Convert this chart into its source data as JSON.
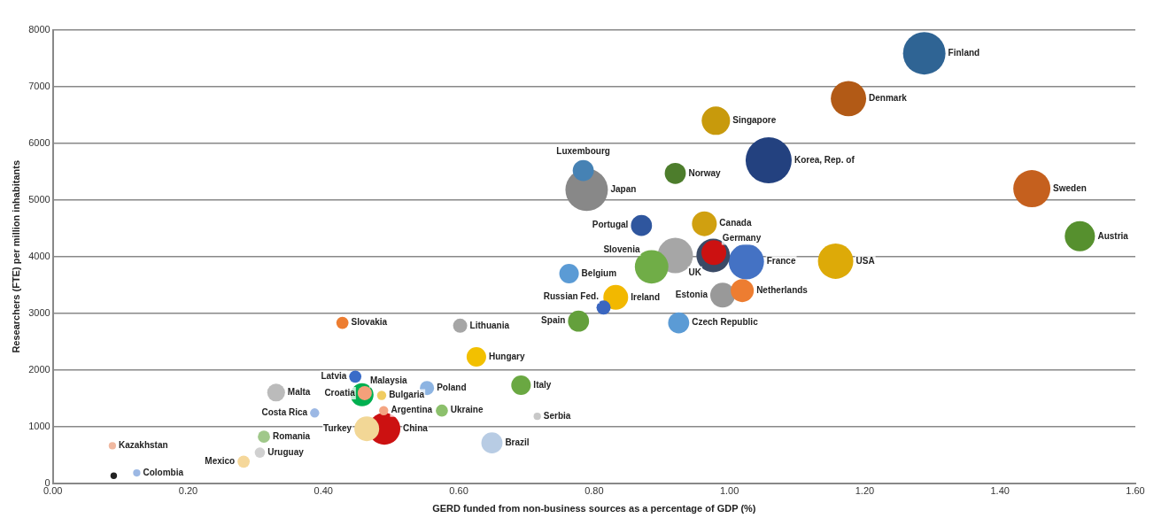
{
  "chart_data": {
    "type": "bubble",
    "xlabel": "GERD funded from non-business sources as a percentage of GDP (%)",
    "ylabel": "Researchers (FTE) per million inhabitants",
    "xlim": [
      0,
      1.6
    ],
    "xticks": [
      {
        "value": 0,
        "label": "0.00"
      },
      {
        "value": 0.2,
        "label": "0.20"
      },
      {
        "value": 0.4,
        "label": "0.40"
      },
      {
        "value": 0.6,
        "label": "0.60"
      },
      {
        "value": 0.8,
        "label": "0.80"
      },
      {
        "value": 1.0,
        "label": "1.00"
      },
      {
        "value": 1.2,
        "label": "1.20"
      },
      {
        "value": 1.4,
        "label": "1.40"
      },
      {
        "value": 1.6,
        "label": "1.60"
      }
    ],
    "ylim": [
      0,
      8000
    ],
    "yticks": [
      0,
      1000,
      2000,
      3000,
      4000,
      5000,
      6000,
      7000,
      8000
    ],
    "grid": "y",
    "legend": false,
    "series": [
      {
        "name": "Finland",
        "color": "#2f6494",
        "x": [
          1.288
        ],
        "values": [
          7590
        ],
        "sizes": [
          0.85
        ]
      },
      {
        "name": "Denmark",
        "color": "#b25a16",
        "x": [
          1.176
        ],
        "values": [
          6790
        ],
        "sizes": [
          0.59
        ]
      },
      {
        "name": "Singapore",
        "color": "#c89a0c",
        "x": [
          0.98
        ],
        "values": [
          6400
        ],
        "sizes": [
          0.38
        ]
      },
      {
        "name": "Korea, Rep. of",
        "color": "#23417f",
        "x": [
          1.058
        ],
        "values": [
          5700
        ],
        "sizes": [
          1
        ]
      },
      {
        "name": "Sweden",
        "color": "#c5601e",
        "x": [
          1.447
        ],
        "values": [
          5200
        ],
        "sizes": [
          0.65
        ]
      },
      {
        "name": "Austria",
        "color": "#56902e",
        "x": [
          1.518
        ],
        "values": [
          4360
        ],
        "sizes": [
          0.43
        ]
      },
      {
        "name": "USA",
        "color": "#ddaa08",
        "x": [
          1.157
        ],
        "values": [
          3920
        ],
        "sizes": [
          0.59
        ]
      },
      {
        "name": "Luxembourg",
        "color": "#4682b4",
        "x": [
          0.784
        ],
        "values": [
          5520
        ],
        "sizes": [
          0.21
        ]
      },
      {
        "name": "Japan",
        "color": "#888888",
        "x": [
          0.789
        ],
        "values": [
          5180
        ],
        "sizes": [
          0.85
        ]
      },
      {
        "name": "Norway",
        "color": "#4d7d2c",
        "x": [
          0.92
        ],
        "values": [
          5470
        ],
        "sizes": [
          0.21
        ]
      },
      {
        "name": "Canada",
        "color": "#d0a010",
        "x": [
          0.963
        ],
        "values": [
          4580
        ],
        "sizes": [
          0.29
        ]
      },
      {
        "name": "Portugal",
        "color": "#2f569e",
        "x": [
          0.87
        ],
        "values": [
          4550
        ],
        "sizes": [
          0.21
        ]
      },
      {
        "color": "#a6a6a6",
        "x": [
          0.92
        ],
        "values": [
          4020
        ],
        "sizes": [
          0.59
        ]
      },
      {
        "name": "UK",
        "color": "#3a4a66",
        "x": [
          0.976
        ],
        "values": [
          4020
        ],
        "sizes": [
          0.53
        ]
      },
      {
        "name": "Germany",
        "color": "#cc1111",
        "x": [
          0.977
        ],
        "values": [
          4070
        ],
        "sizes": [
          0.29
        ]
      },
      {
        "name": "France",
        "color": "#4472c4",
        "x": [
          1.025
        ],
        "values": [
          3910
        ],
        "sizes": [
          0.59
        ]
      },
      {
        "name": "Slovenia",
        "color": "#70ad47",
        "x": [
          0.885
        ],
        "values": [
          3820
        ],
        "sizes": [
          0.53
        ]
      },
      {
        "name": "Netherlands",
        "color": "#ed7d31",
        "x": [
          1.019
        ],
        "values": [
          3400
        ],
        "sizes": [
          0.25
        ]
      },
      {
        "name": "Estonia",
        "color": "#999999",
        "x": [
          0.99
        ],
        "values": [
          3320
        ],
        "sizes": [
          0.29
        ]
      },
      {
        "name": "Belgium",
        "color": "#5b9bd5",
        "x": [
          0.763
        ],
        "values": [
          3700
        ],
        "sizes": [
          0.18
        ]
      },
      {
        "name": "Ireland",
        "color": "#f2b800",
        "x": [
          0.832
        ],
        "values": [
          3280
        ],
        "sizes": [
          0.29
        ]
      },
      {
        "name": "Russian Fed.",
        "color": "#3a66c0",
        "x": [
          0.814
        ],
        "values": [
          3100
        ],
        "sizes": [
          0.095
        ]
      },
      {
        "name": "Spain",
        "color": "#64a03c",
        "x": [
          0.777
        ],
        "values": [
          2860
        ],
        "sizes": [
          0.21
        ]
      },
      {
        "name": "Czech Republic",
        "color": "#5b9bd5",
        "x": [
          0.925
        ],
        "values": [
          2830
        ],
        "sizes": [
          0.21
        ]
      },
      {
        "name": "Slovakia",
        "color": "#ed7d31",
        "x": [
          0.428
        ],
        "values": [
          2830
        ],
        "sizes": [
          0.07
        ]
      },
      {
        "name": "Lithuania",
        "color": "#a6a6a6",
        "x": [
          0.602
        ],
        "values": [
          2780
        ],
        "sizes": [
          0.095
        ]
      },
      {
        "name": "Hungary",
        "color": "#f2c000",
        "x": [
          0.626
        ],
        "values": [
          2230
        ],
        "sizes": [
          0.18
        ]
      },
      {
        "name": "Latvia",
        "color": "#3a6cc8",
        "x": [
          0.447
        ],
        "values": [
          1880
        ],
        "sizes": [
          0.07
        ]
      },
      {
        "name": "Malaysia",
        "color": "#00b050",
        "x": [
          0.457
        ],
        "values": [
          1560
        ],
        "sizes": [
          0.25
        ]
      },
      {
        "name": "Croatia",
        "color": "#f4a07a",
        "x": [
          0.461
        ],
        "values": [
          1590
        ],
        "sizes": [
          0.095
        ]
      },
      {
        "name": "Bulgaria",
        "color": "#f0cc60",
        "x": [
          0.486
        ],
        "values": [
          1550
        ],
        "sizes": [
          0.04
        ]
      },
      {
        "name": "Poland",
        "color": "#8db4e2",
        "x": [
          0.553
        ],
        "values": [
          1680
        ],
        "sizes": [
          0.095
        ]
      },
      {
        "name": "Italy",
        "color": "#6aa842",
        "x": [
          0.692
        ],
        "values": [
          1730
        ],
        "sizes": [
          0.18
        ]
      },
      {
        "name": "Malta",
        "color": "#bbbbbb",
        "x": [
          0.33
        ],
        "values": [
          1600
        ],
        "sizes": [
          0.15
        ]
      },
      {
        "name": "Costa Rica",
        "color": "#9cb8e4",
        "x": [
          0.387
        ],
        "values": [
          1240
        ],
        "sizes": [
          0.04
        ]
      },
      {
        "name": "Argentina",
        "color": "#f4a582",
        "x": [
          0.489
        ],
        "values": [
          1280
        ],
        "sizes": [
          0.04
        ]
      },
      {
        "name": "Ukraine",
        "color": "#8cc06c",
        "x": [
          0.575
        ],
        "values": [
          1280
        ],
        "sizes": [
          0.07
        ]
      },
      {
        "name": "Serbia",
        "color": "#c8c8c8",
        "x": [
          0.716
        ],
        "values": [
          1180
        ],
        "sizes": [
          0.025
        ]
      },
      {
        "name": "China",
        "color": "#cc1111",
        "x": [
          0.49
        ],
        "values": [
          960
        ],
        "sizes": [
          0.48
        ]
      },
      {
        "name": "Turkey",
        "color": "#f2d796",
        "x": [
          0.464
        ],
        "values": [
          960
        ],
        "sizes": [
          0.29
        ]
      },
      {
        "name": "Brazil",
        "color": "#b8cce4",
        "x": [
          0.649
        ],
        "values": [
          710
        ],
        "sizes": [
          0.21
        ]
      },
      {
        "name": "Romania",
        "color": "#a0c88a",
        "x": [
          0.312
        ],
        "values": [
          820
        ],
        "sizes": [
          0.07
        ]
      },
      {
        "name": "Uruguay",
        "color": "#d0d0d0",
        "x": [
          0.306
        ],
        "values": [
          540
        ],
        "sizes": [
          0.05
        ]
      },
      {
        "name": "Mexico",
        "color": "#f5d79a",
        "x": [
          0.282
        ],
        "values": [
          380
        ],
        "sizes": [
          0.07
        ]
      },
      {
        "name": "Kazakhstan",
        "color": "#f0b8a0",
        "x": [
          0.088
        ],
        "values": [
          660
        ],
        "sizes": [
          0.025
        ]
      },
      {
        "name": "Colombia",
        "color": "#9cb8e4",
        "x": [
          0.124
        ],
        "values": [
          180
        ],
        "sizes": [
          0.025
        ]
      },
      {
        "color": "#222222",
        "x": [
          0.09
        ],
        "values": [
          130
        ],
        "sizes": [
          0.02
        ]
      }
    ]
  }
}
